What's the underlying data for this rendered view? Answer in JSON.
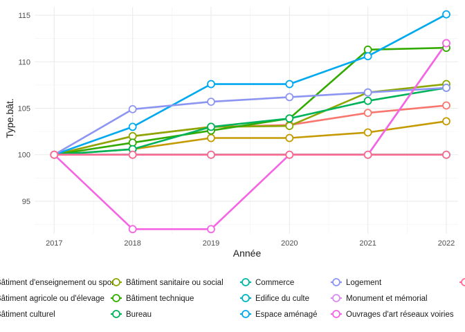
{
  "chart_data": {
    "type": "line",
    "xlabel": "Année",
    "ylabel": "Type.bât.",
    "x": [
      2017,
      2018,
      2019,
      2020,
      2021,
      2022
    ],
    "xlim": [
      2016.75,
      2022.15
    ],
    "ylim": [
      91.5,
      115.9
    ],
    "yticks": [
      95,
      100,
      105,
      110,
      115
    ],
    "grid": true,
    "legend_position": "bottom",
    "series": [
      {
        "name": "Bâtiment d'enseignement ou sport",
        "color": "#F8766D",
        "values": [
          100,
          102,
          103,
          103.2,
          104.5,
          105.3
        ]
      },
      {
        "name": "Bâtiment agricole ou d'élevage",
        "color": "#C49A00",
        "values": [
          100,
          100.6,
          101.8,
          101.8,
          102.4,
          103.6
        ]
      },
      {
        "name": "Bâtiment culturel",
        "color": "#53B400",
        "values": [
          100,
          100,
          100,
          100,
          100,
          100
        ]
      },
      {
        "name": "Bâtiment sanitaire ou social",
        "color": "#8EA600",
        "values": [
          100,
          102,
          103,
          103.1,
          106.7,
          107.6
        ]
      },
      {
        "name": "Bâtiment technique",
        "color": "#33AA00",
        "values": [
          100,
          101.3,
          102.6,
          103.9,
          111.3,
          111.5
        ]
      },
      {
        "name": "Bureau",
        "color": "#00B35B",
        "values": [
          100,
          100.6,
          103,
          103.9,
          105.8,
          107.2
        ]
      },
      {
        "name": "Commerce",
        "color": "#00B8A6",
        "values": [
          100,
          100,
          100,
          100,
          100,
          100
        ]
      },
      {
        "name": "Edifice du culte",
        "color": "#00B4C4",
        "values": [
          100,
          100,
          100,
          100,
          100,
          100
        ]
      },
      {
        "name": "Espace aménagé",
        "color": "#00A9EF",
        "values": [
          100,
          103,
          107.6,
          107.6,
          110.6,
          115.1
        ]
      },
      {
        "name": "Logement",
        "color": "#8C95F2",
        "values": [
          100,
          104.9,
          105.7,
          106.2,
          106.7,
          107.2
        ]
      },
      {
        "name": "Monument et mémorial",
        "color": "#D88BF0",
        "values": [
          100,
          100,
          100,
          100,
          100,
          112
        ]
      },
      {
        "name": "Ouvrages d'art réseaux voiries",
        "color": "#F564E3",
        "values": [
          100,
          92,
          92,
          100,
          100,
          112
        ]
      },
      {
        "name": "",
        "color": "#FF6C91",
        "values": [
          100,
          100,
          100,
          100,
          100,
          100
        ]
      }
    ],
    "legend_rows": [
      [
        "Bâtiment d'enseignement ou sport",
        "Bâtiment sanitaire ou social",
        "Commerce",
        "Logement"
      ],
      [
        "Bâtiment agricole ou d'élevage",
        "Bâtiment technique",
        "Edifice du culte",
        "Monument et mémorial"
      ],
      [
        "Bâtiment culturel",
        "Bureau",
        "Espace aménagé",
        "Ouvrages d'art réseaux voiries"
      ]
    ]
  }
}
